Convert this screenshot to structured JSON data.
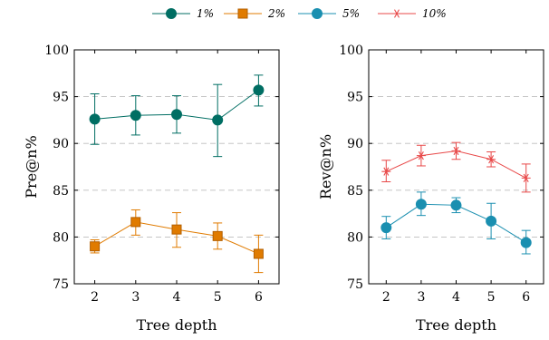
{
  "legend": [
    {
      "name": "1%",
      "color": "#006e63",
      "marker": "circle"
    },
    {
      "name": "2%",
      "color": "#e07b00",
      "marker": "square"
    },
    {
      "name": "5%",
      "color": "#1a8fb0",
      "marker": "circle"
    },
    {
      "name": "10%",
      "color": "#e84848",
      "marker": "star"
    }
  ],
  "chart_data": [
    {
      "type": "line",
      "xlabel": "Tree depth",
      "ylabel": "Pre@n%",
      "x": [
        2,
        3,
        4,
        5,
        6
      ],
      "ylim": [
        75,
        100
      ],
      "yticks": [
        75,
        80,
        85,
        90,
        95,
        100
      ],
      "grid": "horizontal dashed",
      "series": [
        {
          "name": "1%",
          "color": "#006e63",
          "marker": "circle",
          "values": [
            92.6,
            93.0,
            93.1,
            92.5,
            95.7
          ],
          "err_low": [
            89.9,
            90.9,
            91.1,
            88.6,
            94.0
          ],
          "err_high": [
            95.3,
            95.1,
            95.1,
            96.3,
            97.3
          ]
        },
        {
          "name": "2%",
          "color": "#e07b00",
          "marker": "square",
          "values": [
            79.0,
            81.6,
            80.8,
            80.1,
            78.2
          ],
          "err_low": [
            78.3,
            80.2,
            78.9,
            78.7,
            76.2
          ],
          "err_high": [
            79.7,
            82.9,
            82.6,
            81.5,
            80.2
          ]
        }
      ]
    },
    {
      "type": "line",
      "xlabel": "Tree depth",
      "ylabel": "Rev@n%",
      "x": [
        2,
        3,
        4,
        5,
        6
      ],
      "ylim": [
        75,
        100
      ],
      "yticks": [
        75,
        80,
        85,
        90,
        95,
        100
      ],
      "grid": "horizontal dashed",
      "series": [
        {
          "name": "5%",
          "color": "#1a8fb0",
          "marker": "circle",
          "values": [
            81.0,
            83.5,
            83.4,
            81.7,
            79.4
          ],
          "err_low": [
            79.8,
            82.3,
            82.6,
            79.8,
            78.2
          ],
          "err_high": [
            82.2,
            84.8,
            84.2,
            83.6,
            80.7
          ]
        },
        {
          "name": "10%",
          "color": "#e84848",
          "marker": "star",
          "values": [
            87.0,
            88.7,
            89.2,
            88.3,
            86.3
          ],
          "err_low": [
            85.9,
            87.6,
            88.3,
            87.5,
            84.8
          ],
          "err_high": [
            88.2,
            89.8,
            90.1,
            89.1,
            87.8
          ]
        }
      ]
    }
  ]
}
